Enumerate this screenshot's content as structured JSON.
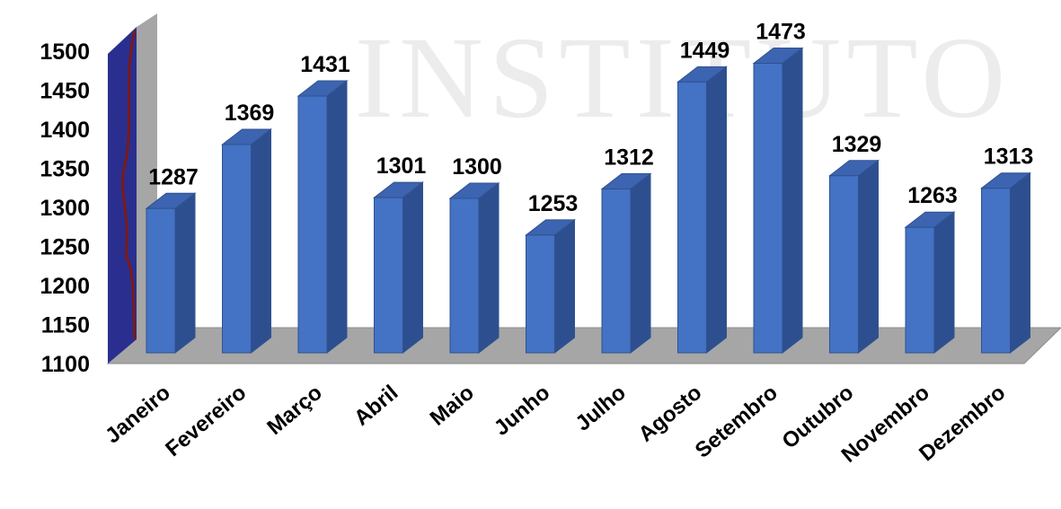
{
  "chart_data": {
    "type": "bar3d",
    "watermark": "INSTITUTO",
    "categories": [
      "Janeiro",
      "Fevereiro",
      "Março",
      "Abril",
      "Maio",
      "Junho",
      "Julho",
      "Agosto",
      "Setembro",
      "Outubro",
      "Novembro",
      "Dezembro"
    ],
    "values": [
      1287,
      1369,
      1431,
      1301,
      1300,
      1253,
      1312,
      1449,
      1473,
      1329,
      1263,
      1313
    ],
    "color": "#4472c4",
    "ylim": [
      1100,
      1500
    ],
    "yticks": [
      1100,
      1150,
      1200,
      1250,
      1300,
      1350,
      1400,
      1450,
      1500
    ]
  }
}
